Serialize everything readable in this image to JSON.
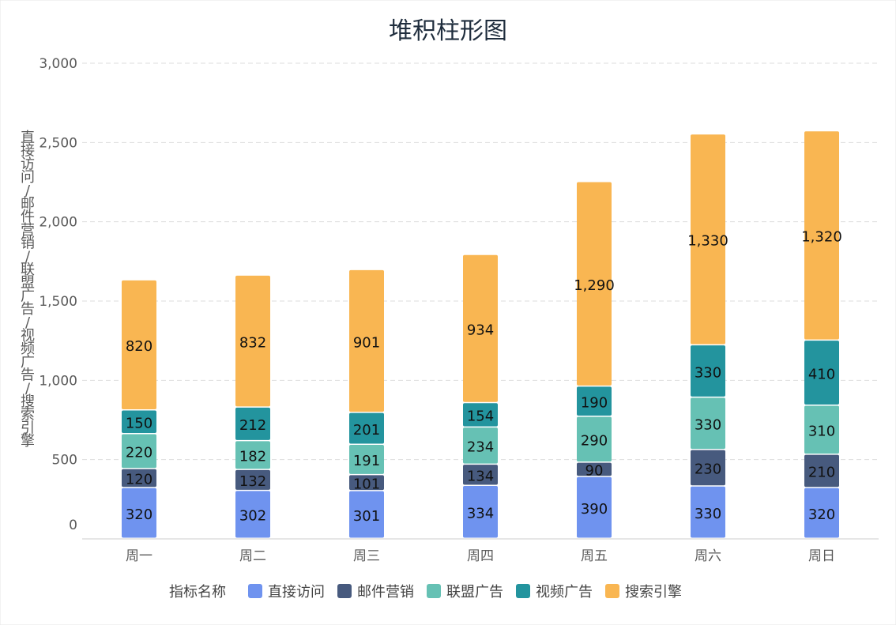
{
  "chart_data": {
    "type": "bar",
    "stacked": true,
    "title": "堆积柱形图",
    "ylabel": "直接访问/邮件营销/联盟广告/视频广告/搜索引擎",
    "xlabel": "",
    "ylim": [
      0,
      3000
    ],
    "yticks": [
      "0",
      "500",
      "1,000",
      "1,500",
      "2,000",
      "2,500",
      "3,000"
    ],
    "ytick_values": [
      0,
      500,
      1000,
      1500,
      2000,
      2500,
      3000
    ],
    "grid": true,
    "categories": [
      "周一",
      "周二",
      "周三",
      "周四",
      "周五",
      "周六",
      "周日"
    ],
    "legend": {
      "title": "指标名称",
      "placement": "bottom"
    },
    "series": [
      {
        "name": "直接访问",
        "color": "#6f93ef",
        "values": [
          320,
          302,
          301,
          334,
          390,
          330,
          320
        ],
        "labels": [
          "320",
          "302",
          "301",
          "334",
          "390",
          "330",
          "320"
        ]
      },
      {
        "name": "邮件营销",
        "color": "#475a7e",
        "values": [
          120,
          132,
          101,
          134,
          90,
          230,
          210
        ],
        "labels": [
          "120",
          "132",
          "101",
          "134",
          "90",
          "230",
          "210"
        ]
      },
      {
        "name": "联盟广告",
        "color": "#66c1b4",
        "values": [
          220,
          182,
          191,
          234,
          290,
          330,
          310
        ],
        "labels": [
          "220",
          "182",
          "191",
          "234",
          "290",
          "330",
          "310"
        ]
      },
      {
        "name": "视频广告",
        "color": "#23949e",
        "values": [
          150,
          212,
          201,
          154,
          190,
          330,
          410
        ],
        "labels": [
          "150",
          "212",
          "201",
          "154",
          "190",
          "330",
          "410"
        ]
      },
      {
        "name": "搜索引擎",
        "color": "#f9b652",
        "values": [
          820,
          832,
          901,
          934,
          1290,
          1330,
          1320
        ],
        "labels": [
          "820",
          "832",
          "901",
          "934",
          "1,290",
          "1,330",
          "1,320"
        ]
      }
    ]
  }
}
